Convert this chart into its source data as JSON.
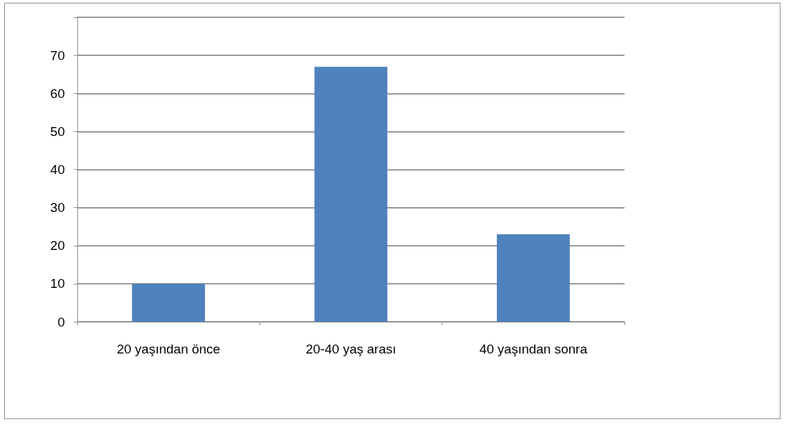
{
  "chart_data": {
    "type": "bar",
    "categories": [
      "20 yaşından önce",
      "20-40 yaş arası",
      "40 yaşından sonra"
    ],
    "values": [
      10,
      67,
      23
    ],
    "color": "#4f81bd",
    "ylim": [
      0,
      80
    ],
    "yticks": [
      0,
      10,
      20,
      30,
      40,
      50,
      60,
      70,
      {
        "value": 80,
        "label": null
      }
    ],
    "grid": "y"
  }
}
